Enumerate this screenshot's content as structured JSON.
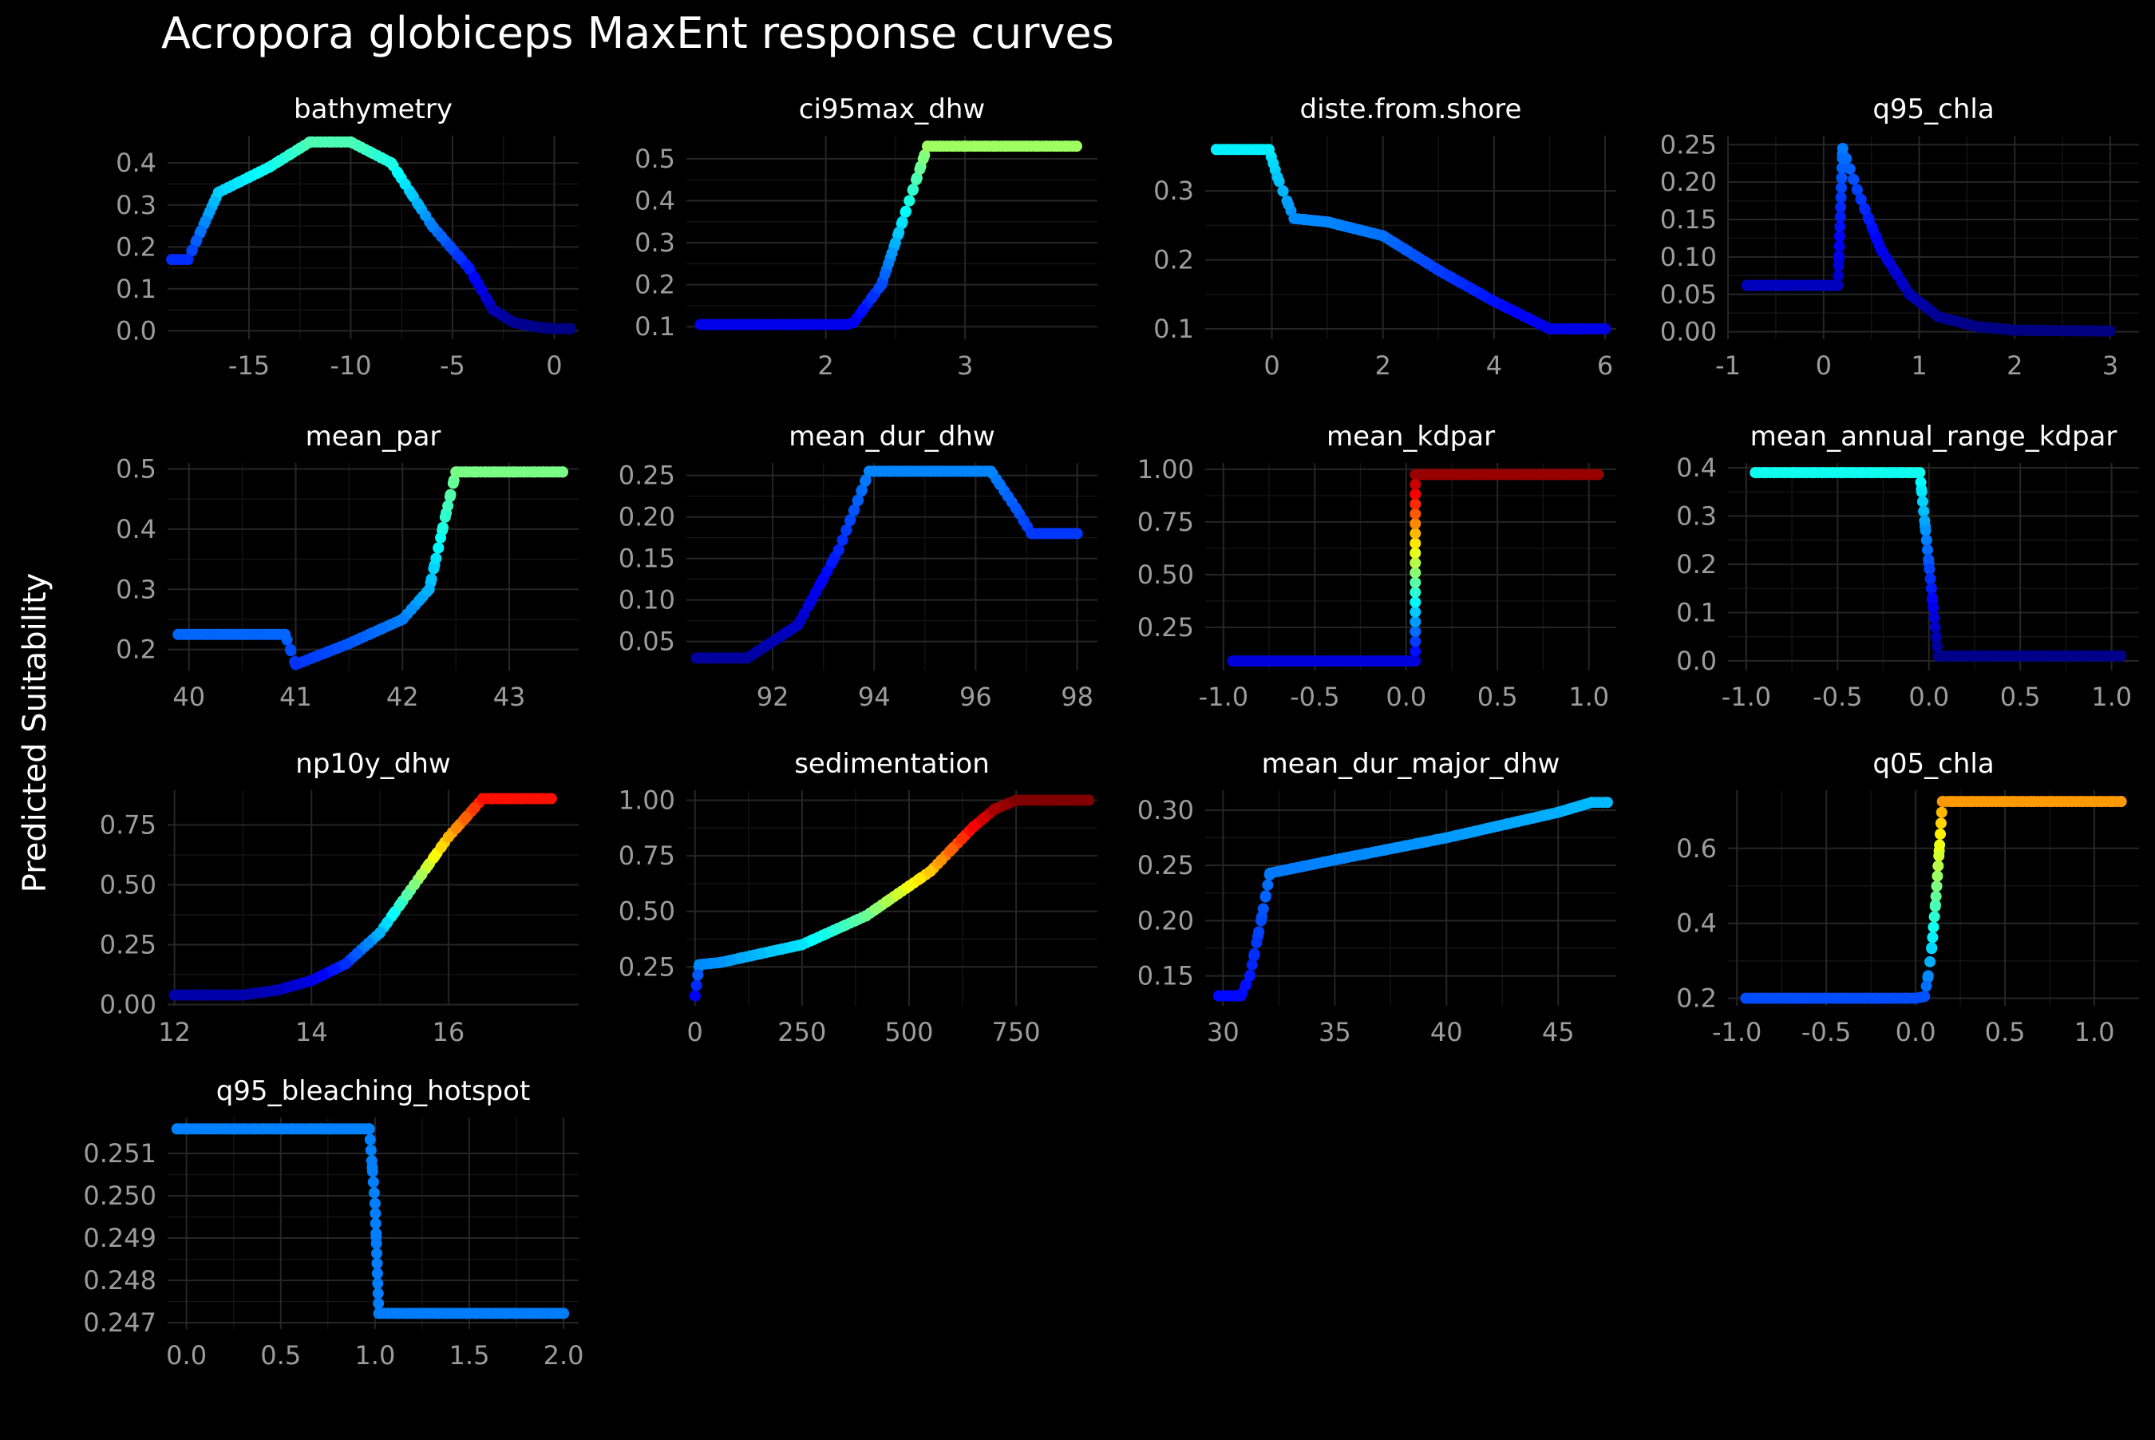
{
  "figure": {
    "title": "Acropora globiceps MaxEnt response curves",
    "ylabel": "Predicted Suitability",
    "background": "#000000",
    "grid_color": "#262626",
    "tick_color": "#9c9c9c",
    "colormap": "jet",
    "color_scale_range": [
      0,
      1
    ]
  },
  "chart_data": [
    {
      "type": "scatter",
      "title": "bathymetry",
      "xlim": [
        -19.0,
        1.2
      ],
      "ylim": [
        -0.02,
        0.465
      ],
      "xticks": [
        -15,
        -10,
        -5,
        0
      ],
      "xtick_labels": [
        "-15",
        "-10",
        "-5",
        "0"
      ],
      "yticks": [
        0.0,
        0.1,
        0.2,
        0.3,
        0.4
      ],
      "ytick_labels": [
        "0.0",
        "0.1",
        "0.2",
        "0.3",
        "0.4"
      ],
      "x": [
        -18.8,
        -18.0,
        -16.5,
        -14.0,
        -12.0,
        -10.0,
        -8.0,
        -6.0,
        -4.2,
        -3.0,
        -2.0,
        -1.0,
        0.0,
        0.8
      ],
      "y": [
        0.17,
        0.17,
        0.33,
        0.39,
        0.45,
        0.45,
        0.4,
        0.25,
        0.15,
        0.05,
        0.02,
        0.01,
        0.005,
        0.005
      ]
    },
    {
      "type": "scatter",
      "title": "ci95max_dhw",
      "xlim": [
        1.0,
        3.95
      ],
      "ylim": [
        0.07,
        0.555
      ],
      "xticks": [
        2,
        3
      ],
      "xtick_labels": [
        "2",
        "3"
      ],
      "yticks": [
        0.1,
        0.2,
        0.3,
        0.4,
        0.5
      ],
      "ytick_labels": [
        "0.1",
        "0.2",
        "0.3",
        "0.4",
        "0.5"
      ],
      "x": [
        1.1,
        2.0,
        2.15,
        2.2,
        2.4,
        2.55,
        2.7,
        2.73,
        3.0,
        3.8
      ],
      "y": [
        0.105,
        0.105,
        0.105,
        0.11,
        0.2,
        0.35,
        0.5,
        0.53,
        0.53,
        0.53
      ]
    },
    {
      "type": "scatter",
      "title": "diste.from.shore",
      "xlim": [
        -1.2,
        6.2
      ],
      "ylim": [
        0.085,
        0.38
      ],
      "xticks": [
        0,
        2,
        4,
        6
      ],
      "xtick_labels": [
        "0",
        "2",
        "4",
        "6"
      ],
      "yticks": [
        0.1,
        0.2,
        0.3
      ],
      "ytick_labels": [
        "0.1",
        "0.2",
        "0.3"
      ],
      "x": [
        -1.0,
        -0.05,
        0.1,
        0.3,
        0.4,
        1.0,
        2.0,
        3.0,
        4.0,
        5.0,
        6.0
      ],
      "y": [
        0.36,
        0.36,
        0.32,
        0.28,
        0.26,
        0.255,
        0.235,
        0.185,
        0.14,
        0.1,
        0.1
      ]
    },
    {
      "type": "scatter",
      "title": "q95_chla",
      "xlim": [
        -1.0,
        3.3
      ],
      "ylim": [
        -0.01,
        0.262
      ],
      "xticks": [
        -1,
        0,
        1,
        2,
        3
      ],
      "xtick_labels": [
        "-1",
        "0",
        "1",
        "2",
        "3"
      ],
      "yticks": [
        0.0,
        0.05,
        0.1,
        0.15,
        0.2,
        0.25
      ],
      "ytick_labels": [
        "0.00",
        "0.05",
        "0.10",
        "0.15",
        "0.20",
        "0.25"
      ],
      "x": [
        -0.8,
        0.15,
        0.2,
        0.35,
        0.6,
        0.9,
        1.2,
        1.6,
        2.0,
        3.0
      ],
      "y": [
        0.062,
        0.062,
        0.245,
        0.19,
        0.11,
        0.05,
        0.02,
        0.007,
        0.002,
        0.001
      ]
    },
    {
      "type": "scatter",
      "title": "mean_par",
      "xlim": [
        39.8,
        43.65
      ],
      "ylim": [
        0.165,
        0.51
      ],
      "xticks": [
        40,
        41,
        42,
        43
      ],
      "xtick_labels": [
        "40",
        "41",
        "42",
        "43"
      ],
      "yticks": [
        0.2,
        0.3,
        0.4,
        0.5
      ],
      "ytick_labels": [
        "0.2",
        "0.3",
        "0.4",
        "0.5"
      ],
      "x": [
        39.9,
        40.9,
        40.95,
        41.0,
        41.5,
        42.0,
        42.25,
        42.4,
        42.5,
        43.5
      ],
      "y": [
        0.225,
        0.225,
        0.2,
        0.175,
        0.21,
        0.25,
        0.3,
        0.42,
        0.495,
        0.495
      ]
    },
    {
      "type": "scatter",
      "title": "mean_dur_dhw",
      "xlim": [
        90.3,
        98.4
      ],
      "ylim": [
        0.015,
        0.265
      ],
      "xticks": [
        92,
        94,
        96,
        98
      ],
      "xtick_labels": [
        "92",
        "94",
        "96",
        "98"
      ],
      "yticks": [
        0.05,
        0.1,
        0.15,
        0.2,
        0.25
      ],
      "ytick_labels": [
        "0.05",
        "0.10",
        "0.15",
        "0.20",
        "0.25"
      ],
      "x": [
        90.5,
        91.5,
        92.5,
        93.3,
        93.9,
        96.3,
        96.8,
        97.1,
        98.0
      ],
      "y": [
        0.03,
        0.03,
        0.07,
        0.16,
        0.255,
        0.255,
        0.21,
        0.18,
        0.18
      ]
    },
    {
      "type": "scatter",
      "title": "mean_kdpar",
      "xlim": [
        -1.1,
        1.15
      ],
      "ylim": [
        0.045,
        1.03
      ],
      "xticks": [
        -1.0,
        -0.5,
        0.0,
        0.5,
        1.0
      ],
      "xtick_labels": [
        "-1.0",
        "-0.5",
        "0.0",
        "0.5",
        "1.0"
      ],
      "yticks": [
        0.25,
        0.5,
        0.75,
        1.0
      ],
      "ytick_labels": [
        "0.25",
        "0.50",
        "0.75",
        "1.00"
      ],
      "x": [
        -0.95,
        0.05,
        0.05,
        1.05
      ],
      "y": [
        0.09,
        0.09,
        0.975,
        0.975
      ]
    },
    {
      "type": "scatter",
      "title": "mean_annual_range_kdpar",
      "xlim": [
        -1.1,
        1.15
      ],
      "ylim": [
        -0.02,
        0.41
      ],
      "xticks": [
        -1.0,
        -0.5,
        0.0,
        0.5,
        1.0
      ],
      "xtick_labels": [
        "-1.0",
        "-0.5",
        "0.0",
        "0.5",
        "1.0"
      ],
      "yticks": [
        0.0,
        0.1,
        0.2,
        0.3,
        0.4
      ],
      "ytick_labels": [
        "0.0",
        "0.1",
        "0.2",
        "0.3",
        "0.4"
      ],
      "x": [
        -0.95,
        -0.05,
        0.05,
        1.05
      ],
      "y": [
        0.39,
        0.39,
        0.01,
        0.01
      ]
    },
    {
      "type": "scatter",
      "title": "np10y_dhw",
      "xlim": [
        11.9,
        17.9
      ],
      "ylim": [
        -0.005,
        0.895
      ],
      "xticks": [
        12,
        14,
        16
      ],
      "xtick_labels": [
        "12",
        "14",
        "16"
      ],
      "yticks": [
        0.0,
        0.25,
        0.5,
        0.75
      ],
      "ytick_labels": [
        "0.00",
        "0.25",
        "0.50",
        "0.75"
      ],
      "x": [
        12.0,
        13.0,
        13.5,
        14.0,
        14.5,
        15.0,
        15.5,
        16.0,
        16.5,
        17.5
      ],
      "y": [
        0.04,
        0.04,
        0.06,
        0.1,
        0.17,
        0.3,
        0.5,
        0.7,
        0.86,
        0.86
      ]
    },
    {
      "type": "scatter",
      "title": "sedimentation",
      "xlim": [
        -20,
        940
      ],
      "ylim": [
        0.075,
        1.045
      ],
      "xticks": [
        0,
        250,
        500,
        750
      ],
      "xtick_labels": [
        "0",
        "250",
        "500",
        "750"
      ],
      "yticks": [
        0.25,
        0.5,
        0.75,
        1.0
      ],
      "ytick_labels": [
        "0.25",
        "0.50",
        "0.75",
        "1.00"
      ],
      "x": [
        0,
        10,
        60,
        250,
        400,
        550,
        650,
        700,
        750,
        920
      ],
      "y": [
        0.12,
        0.26,
        0.27,
        0.35,
        0.48,
        0.68,
        0.88,
        0.96,
        1.0,
        1.0
      ]
    },
    {
      "type": "scatter",
      "title": "mean_dur_major_dhw",
      "xlim": [
        29.2,
        47.6
      ],
      "ylim": [
        0.123,
        0.318
      ],
      "xticks": [
        30,
        35,
        40,
        45
      ],
      "xtick_labels": [
        "30",
        "35",
        "40",
        "45"
      ],
      "yticks": [
        0.15,
        0.2,
        0.25,
        0.3
      ],
      "ytick_labels": [
        "0.15",
        "0.20",
        "0.25",
        "0.30"
      ],
      "x": [
        29.8,
        30.8,
        31.2,
        31.7,
        32.1,
        35.0,
        40.0,
        45.0,
        46.5,
        47.2
      ],
      "y": [
        0.132,
        0.132,
        0.15,
        0.2,
        0.243,
        0.255,
        0.275,
        0.298,
        0.307,
        0.307
      ]
    },
    {
      "type": "scatter",
      "title": "q05_chla",
      "xlim": [
        -1.05,
        1.25
      ],
      "ylim": [
        0.18,
        0.755
      ],
      "xticks": [
        -1.0,
        -0.5,
        0.0,
        0.5,
        1.0
      ],
      "xtick_labels": [
        "-1.0",
        "-0.5",
        "0.0",
        "0.5",
        "1.0"
      ],
      "yticks": [
        0.2,
        0.4,
        0.6
      ],
      "ytick_labels": [
        "0.2",
        "0.4",
        "0.6"
      ],
      "x": [
        -0.95,
        0.0,
        0.05,
        0.07,
        0.09,
        0.11,
        0.13,
        0.15,
        1.15
      ],
      "y": [
        0.2,
        0.2,
        0.205,
        0.26,
        0.335,
        0.445,
        0.58,
        0.725,
        0.725
      ]
    },
    {
      "type": "scatter",
      "title": "q95_bleaching_hotspot",
      "xlim": [
        -0.1,
        2.08
      ],
      "ylim": [
        0.24685,
        0.25185
      ],
      "xticks": [
        0.0,
        0.5,
        1.0,
        1.5,
        2.0
      ],
      "xtick_labels": [
        "0.0",
        "0.5",
        "1.0",
        "1.5",
        "2.0"
      ],
      "yticks": [
        0.247,
        0.248,
        0.249,
        0.25,
        0.251
      ],
      "ytick_labels": [
        "0.247",
        "0.248",
        "0.249",
        "0.250",
        "0.251"
      ],
      "x": [
        -0.05,
        0.97,
        1.0,
        1.02,
        2.0
      ],
      "y": [
        0.25158,
        0.25158,
        0.24982,
        0.24722,
        0.24722
      ]
    }
  ]
}
